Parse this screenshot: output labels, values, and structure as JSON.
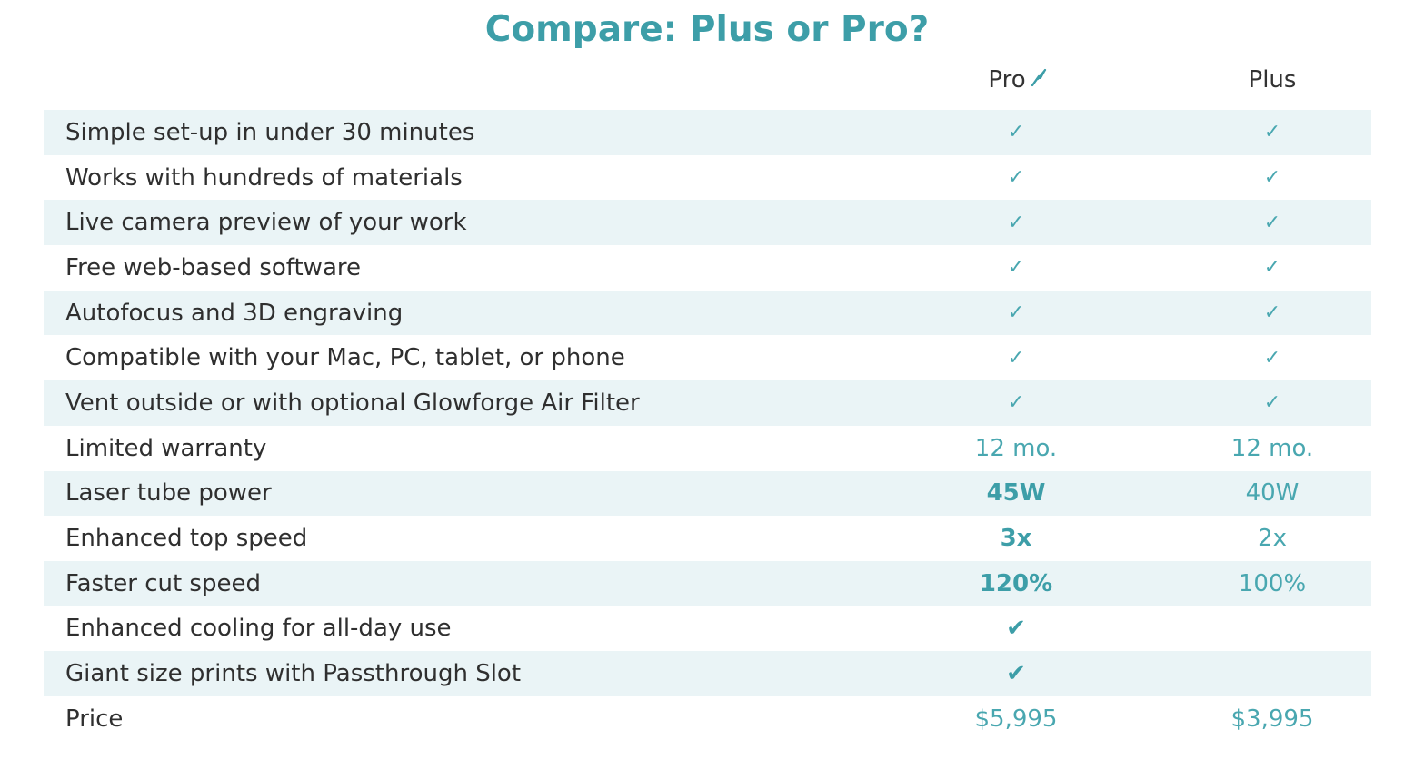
{
  "title": "Compare: Plus or Pro?",
  "columns": {
    "pro": "Pro",
    "pro_icon": "lightning-bolt-icon",
    "plus": "Plus"
  },
  "colors": {
    "accent": "#3d9ea8",
    "row_shade": "#eaf4f6",
    "text": "#2f2f2f"
  },
  "rows": [
    {
      "feature": "Simple set-up in under 30 minutes",
      "pro": "✓",
      "plus": "✓"
    },
    {
      "feature": "Works with hundreds of materials",
      "pro": "✓",
      "plus": "✓"
    },
    {
      "feature": "Live camera preview of your work",
      "pro": "✓",
      "plus": "✓"
    },
    {
      "feature": "Free web-based software",
      "pro": "✓",
      "plus": "✓"
    },
    {
      "feature": "Autofocus and 3D engraving",
      "pro": "✓",
      "plus": "✓"
    },
    {
      "feature": "Compatible with your Mac, PC, tablet, or phone",
      "pro": "✓",
      "plus": "✓"
    },
    {
      "feature": "Vent outside or with optional Glowforge Air Filter",
      "pro": "✓",
      "plus": "✓"
    },
    {
      "feature": "Limited warranty",
      "pro": "12 mo.",
      "plus": "12 mo."
    },
    {
      "feature": "Laser tube power",
      "pro": "45W",
      "plus": "40W"
    },
    {
      "feature": "Enhanced top speed",
      "pro": "3x",
      "plus": "2x"
    },
    {
      "feature": "Faster cut speed",
      "pro": "120%",
      "plus": "100%"
    },
    {
      "feature": "Enhanced cooling for all-day use",
      "pro": "✔",
      "plus": ""
    },
    {
      "feature": "Giant size prints with Passthrough Slot",
      "pro": "✔",
      "plus": ""
    },
    {
      "feature": "Price",
      "pro": "$5,995",
      "plus": "$3,995"
    }
  ]
}
